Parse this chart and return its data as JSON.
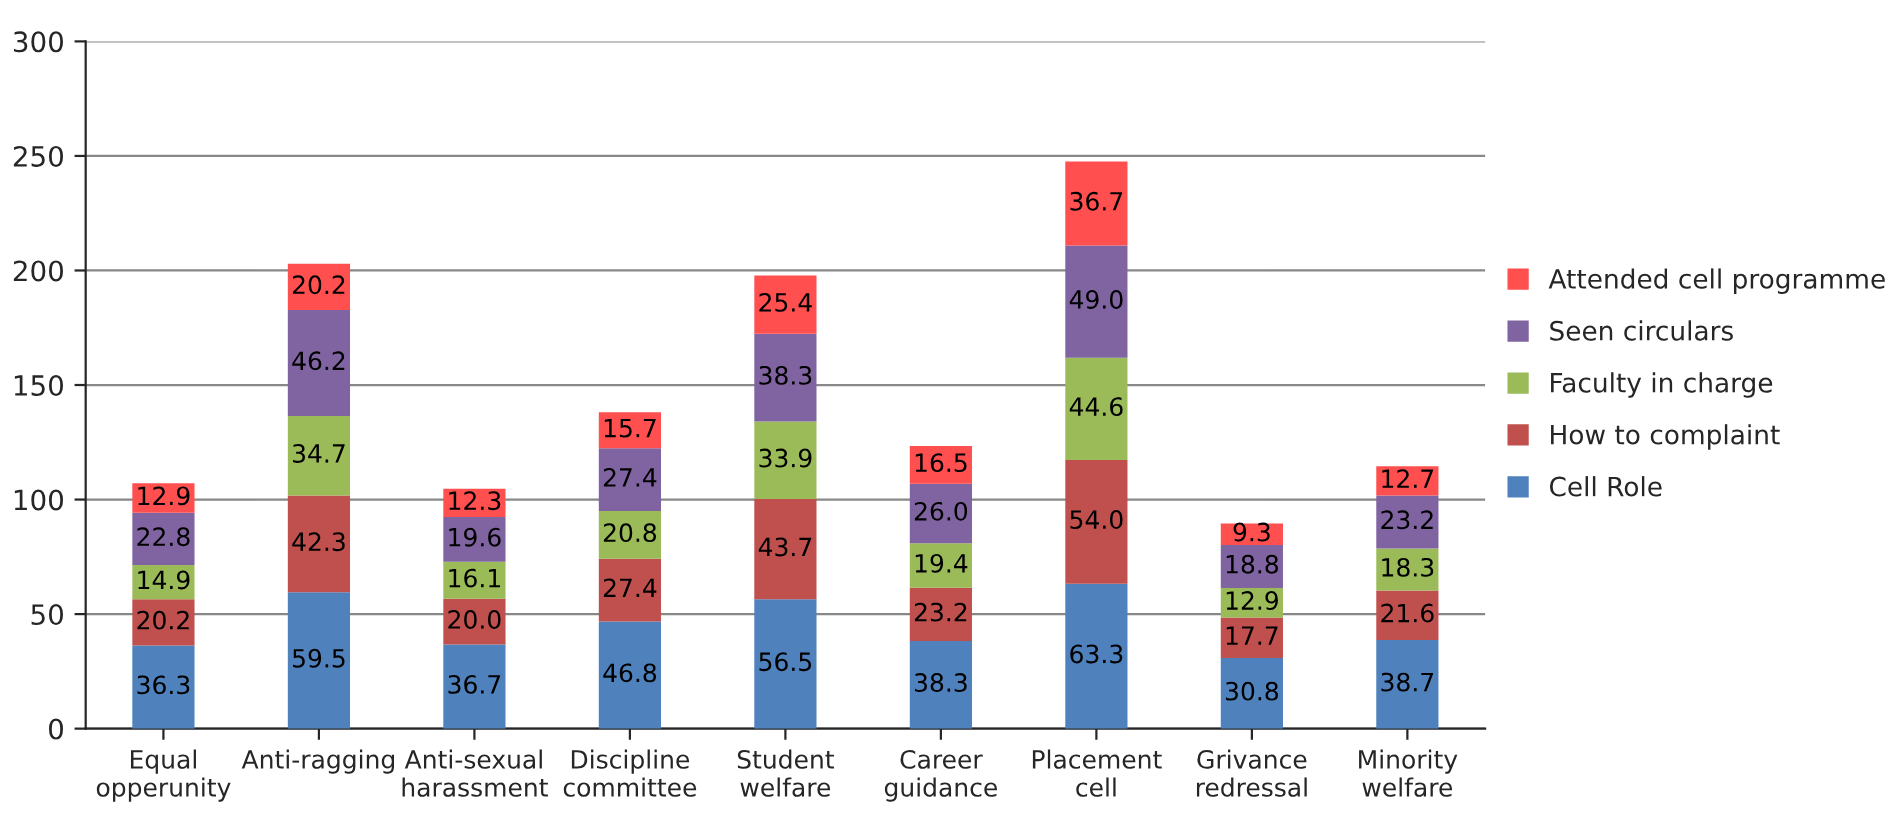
{
  "chart_data": {
    "type": "bar",
    "stacked": true,
    "categories": [
      "Equal opperunity",
      "Anti-ragging",
      "Anti-sexual harassment",
      "Discipline committee",
      "Student welfare",
      "Career guidance",
      "Placement cell",
      "Grivance redressal",
      "Minority welfare"
    ],
    "series": [
      {
        "name": "Cell Role",
        "color": "#4f81bd",
        "values": [
          36.3,
          59.5,
          36.7,
          46.8,
          56.5,
          38.3,
          63.3,
          30.8,
          38.7
        ],
        "value_labels": [
          "36.3",
          "59.5",
          "36.7",
          "46.8",
          "56.5",
          "38.3",
          "63.3",
          "30.8",
          "38.7"
        ]
      },
      {
        "name": "How to complaint",
        "color": "#c0504d",
        "values": [
          20.2,
          42.3,
          20.0,
          27.4,
          43.7,
          23.2,
          54.0,
          17.7,
          21.6
        ],
        "value_labels": [
          "20.2",
          "42.3",
          "20.0",
          "27.4",
          "43.7",
          "23.2",
          "54.0",
          "17.7",
          "21.6"
        ]
      },
      {
        "name": "Faculty in charge",
        "color": "#9bbb59",
        "values": [
          14.9,
          34.7,
          16.1,
          20.8,
          33.9,
          19.4,
          44.6,
          12.9,
          18.3
        ],
        "value_labels": [
          "14.9",
          "34.7",
          "16.1",
          "20.8",
          "33.9",
          "19.4",
          "44.6",
          "12.9",
          "18.3"
        ]
      },
      {
        "name": "Seen circulars",
        "color": "#8064a2",
        "values": [
          22.8,
          46.2,
          19.6,
          27.4,
          38.3,
          26.0,
          49.0,
          18.8,
          23.2
        ],
        "value_labels": [
          "22.8",
          "46.2",
          "19.6",
          "27.4",
          "38.3",
          "26.0",
          "49.0",
          "18.8",
          "23.2"
        ]
      },
      {
        "name": "Attended cell programme",
        "color": "#ff4f4f",
        "values": [
          12.9,
          20.2,
          12.3,
          15.7,
          25.4,
          16.5,
          36.7,
          9.3,
          12.7
        ],
        "value_labels": [
          "12.9",
          "20.2",
          "12.3",
          "15.7",
          "25.4",
          "16.5",
          "36.7",
          "9.3",
          "12.7"
        ]
      }
    ],
    "ylim": [
      0,
      300
    ],
    "yticks": [
      0,
      50,
      100,
      150,
      200,
      250,
      300
    ],
    "grid": "y",
    "legend": "right"
  }
}
